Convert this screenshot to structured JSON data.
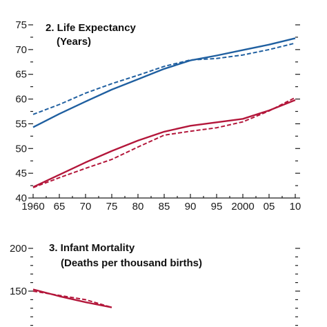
{
  "chart_data": [
    {
      "type": "line",
      "title": "2. Life Expectancy",
      "subtitle": "(Years)",
      "xlabel": "",
      "ylabel": "",
      "xlim": [
        1960,
        2010
      ],
      "ylim": [
        40,
        75
      ],
      "x_ticks": [
        1960,
        1965,
        1970,
        1975,
        1980,
        1985,
        1990,
        1995,
        2000,
        2005,
        2010
      ],
      "x_tick_labels": [
        "1960",
        "65",
        "70",
        "75",
        "80",
        "85",
        "90",
        "95",
        "2000",
        "05",
        "10"
      ],
      "y_ticks": [
        40,
        45,
        50,
        55,
        60,
        65,
        70,
        75
      ],
      "y_tick_labels": [
        "40",
        "45",
        "50",
        "55",
        "60",
        "65",
        "70",
        "75"
      ],
      "legend": "none",
      "grid": false,
      "series": [
        {
          "color": "#1f5fa0",
          "style": "solid",
          "x": [
            1960,
            1965,
            1970,
            1975,
            1980,
            1985,
            1990,
            1995,
            2000,
            2005,
            2010
          ],
          "values": [
            54.3,
            57.0,
            59.5,
            61.9,
            64.0,
            66.1,
            67.8,
            68.8,
            69.9,
            71.0,
            72.3
          ]
        },
        {
          "color": "#1f5fa0",
          "style": "dashed",
          "x": [
            1960,
            1965,
            1970,
            1975,
            1980,
            1985,
            1990,
            1995,
            2000,
            2005,
            2010
          ],
          "values": [
            56.9,
            58.9,
            61.2,
            63.1,
            64.8,
            66.6,
            67.9,
            68.2,
            68.9,
            70.0,
            71.3
          ]
        },
        {
          "color": "#b3163a",
          "style": "solid",
          "x": [
            1960,
            1965,
            1970,
            1975,
            1980,
            1985,
            1990,
            1995,
            2000,
            2005,
            2010
          ],
          "values": [
            42.2,
            44.7,
            47.2,
            49.5,
            51.6,
            53.4,
            54.6,
            55.3,
            56.0,
            57.7,
            59.8
          ]
        },
        {
          "color": "#b3163a",
          "style": "dashed",
          "x": [
            1960,
            1965,
            1970,
            1975,
            1980,
            1985,
            1990,
            1995,
            2000,
            2005,
            2010
          ],
          "values": [
            42.1,
            44.1,
            46.0,
            47.8,
            50.3,
            52.7,
            53.5,
            54.2,
            55.4,
            57.6,
            60.3
          ]
        }
      ]
    },
    {
      "type": "line",
      "title": "3. Infant Mortality",
      "subtitle": "(Deaths per thousand births)",
      "xlabel": "",
      "ylabel": "",
      "xlim": [
        1960,
        2010
      ],
      "y_ticks": [
        150,
        200
      ],
      "y_tick_labels": [
        "150",
        "200"
      ],
      "legend": "none",
      "grid": false,
      "series": [
        {
          "color": "#b3163a",
          "style": "solid",
          "x": [
            1960,
            1965,
            1970,
            1975
          ],
          "values": [
            152,
            144,
            137,
            131
          ]
        },
        {
          "color": "#b3163a",
          "style": "dashed",
          "x": [
            1960,
            1965,
            1970,
            1975
          ],
          "values": [
            150,
            145,
            140,
            131
          ]
        }
      ]
    }
  ]
}
